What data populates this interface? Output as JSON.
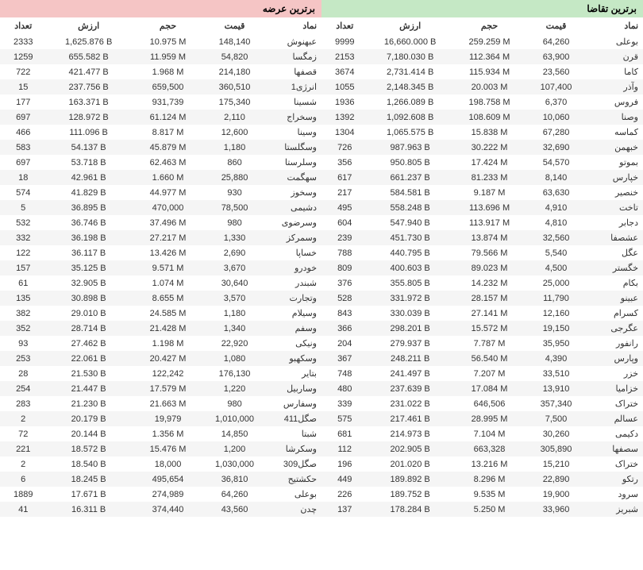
{
  "demand": {
    "title": "برترین تقاضا",
    "header_bg": "#c5e8c5",
    "columns": [
      "نماد",
      "قیمت",
      "حجم",
      "ارزش",
      "تعداد"
    ],
    "rows": [
      [
        "بوعلی",
        "64,260",
        "259.259 M",
        "16,660.000 B",
        "9999"
      ],
      [
        "قرن",
        "63,900",
        "112.364 M",
        "7,180.030 B",
        "2153"
      ],
      [
        "کاما",
        "23,560",
        "115.934 M",
        "2,731.414 B",
        "3674"
      ],
      [
        "وآذر",
        "107,400",
        "20.003 M",
        "2,148.345 B",
        "1055"
      ],
      [
        "فروس",
        "6,370",
        "198.758 M",
        "1,266.089 B",
        "1936"
      ],
      [
        "وصنا",
        "10,060",
        "108.609 M",
        "1,092.608 B",
        "1392"
      ],
      [
        "کماسه",
        "67,280",
        "15.838 M",
        "1,065.575 B",
        "1304"
      ],
      [
        "خبهمن",
        "32,690",
        "30.222 M",
        "987.963 B",
        "726"
      ],
      [
        "بموتو",
        "54,570",
        "17.424 M",
        "950.805 B",
        "356"
      ],
      [
        "خپارس",
        "8,140",
        "81.233 M",
        "661.237 B",
        "617"
      ],
      [
        "خنصیر",
        "63,630",
        "9.187 M",
        "584.581 B",
        "217"
      ],
      [
        "تاخت",
        "4,910",
        "113.696 M",
        "558.248 B",
        "495"
      ],
      [
        "دجابر",
        "4,810",
        "113.917 M",
        "547.940 B",
        "604"
      ],
      [
        "عشصفا",
        "32,560",
        "13.874 M",
        "451.730 B",
        "239"
      ],
      [
        "عگل",
        "5,540",
        "79.566 M",
        "440.795 B",
        "788"
      ],
      [
        "خگستر",
        "4,500",
        "89.023 M",
        "400.603 B",
        "809"
      ],
      [
        "بکام",
        "25,000",
        "14.232 M",
        "355.805 B",
        "376"
      ],
      [
        "عبینو",
        "11,790",
        "28.157 M",
        "331.972 B",
        "528"
      ],
      [
        "کسرام",
        "12,160",
        "27.141 M",
        "330.039 B",
        "843"
      ],
      [
        "عگرجی",
        "19,150",
        "15.572 M",
        "298.201 B",
        "366"
      ],
      [
        "رانفور",
        "35,950",
        "7.787 M",
        "279.937 B",
        "204"
      ],
      [
        "وپارس",
        "4,390",
        "56.540 M",
        "248.211 B",
        "367"
      ],
      [
        "خزر",
        "33,510",
        "7.207 M",
        "241.497 B",
        "748"
      ],
      [
        "خزامیا",
        "13,910",
        "17.084 M",
        "237.639 B",
        "480"
      ],
      [
        "ختراک",
        "357,340",
        "646,506",
        "231.022 B",
        "339"
      ],
      [
        "عسالم",
        "7,500",
        "28.995 M",
        "217.461 B",
        "575"
      ],
      [
        "دکیمی",
        "30,260",
        "7.104 M",
        "214.973 B",
        "681"
      ],
      [
        "سصفها",
        "305,890",
        "663,328",
        "202.905 B",
        "112"
      ],
      [
        "ختراک",
        "15,210",
        "13.216 M",
        "201.020 B",
        "196"
      ],
      [
        "رتکو",
        "22,890",
        "8.296 M",
        "189.892 B",
        "449"
      ],
      [
        "سرود",
        "19,900",
        "9.535 M",
        "189.752 B",
        "226"
      ],
      [
        "شبریز",
        "33,960",
        "5.250 M",
        "178.284 B",
        "137"
      ]
    ]
  },
  "supply": {
    "title": "برترین عرضه",
    "header_bg": "#f5c5c5",
    "columns": [
      "نماد",
      "قیمت",
      "حجم",
      "ارزش",
      "تعداد"
    ],
    "rows": [
      [
        "عبهنوش",
        "148,140",
        "10.975 M",
        "1,625.876 B",
        "2333"
      ],
      [
        "زمگسا",
        "54,820",
        "11.959 M",
        "655.582 B",
        "1259"
      ],
      [
        "قصفها",
        "214,180",
        "1.968 M",
        "421.477 B",
        "722"
      ],
      [
        "انرژی1",
        "360,510",
        "659,500",
        "237.756 B",
        "15"
      ],
      [
        "شسینا",
        "175,340",
        "931,739",
        "163.371 B",
        "177"
      ],
      [
        "وسخراج",
        "2,110",
        "61.124 M",
        "128.972 B",
        "697"
      ],
      [
        "وسینا",
        "12,600",
        "8.817 M",
        "111.096 B",
        "466"
      ],
      [
        "وسگلستا",
        "1,180",
        "45.879 M",
        "54.137 B",
        "583"
      ],
      [
        "وسلرستا",
        "860",
        "62.463 M",
        "53.718 B",
        "697"
      ],
      [
        "سهگمت",
        "25,880",
        "1.660 M",
        "42.961 B",
        "18"
      ],
      [
        "وسخوز",
        "930",
        "44.977 M",
        "41.829 B",
        "574"
      ],
      [
        "دشیمی",
        "78,500",
        "470,000",
        "36.895 B",
        "5"
      ],
      [
        "وسرضوی",
        "980",
        "37.496 M",
        "36.746 B",
        "532"
      ],
      [
        "وسمرکز",
        "1,330",
        "27.217 M",
        "36.198 B",
        "332"
      ],
      [
        "خساپا",
        "2,690",
        "13.426 M",
        "36.117 B",
        "122"
      ],
      [
        "خودرو",
        "3,670",
        "9.571 M",
        "35.125 B",
        "157"
      ],
      [
        "شبندر",
        "30,640",
        "1.074 M",
        "32.905 B",
        "61"
      ],
      [
        "وتجارت",
        "3,570",
        "8.655 M",
        "30.898 B",
        "135"
      ],
      [
        "وسیلام",
        "1,180",
        "24.585 M",
        "29.010 B",
        "382"
      ],
      [
        "وسفم",
        "1,340",
        "21.428 M",
        "28.714 B",
        "352"
      ],
      [
        "ونیکی",
        "22,920",
        "1.198 M",
        "27.462 B",
        "93"
      ],
      [
        "وسکهبو",
        "1,080",
        "20.427 M",
        "22.061 B",
        "253"
      ],
      [
        "بتایر",
        "176,130",
        "122,242",
        "21.530 B",
        "28"
      ],
      [
        "وساربیل",
        "1,220",
        "17.579 M",
        "21.447 B",
        "254"
      ],
      [
        "وسفارس",
        "980",
        "21.663 M",
        "21.230 B",
        "283"
      ],
      [
        "صگل411",
        "1,010,000",
        "19,979",
        "20.179 B",
        "2"
      ],
      [
        "شبتا",
        "14,850",
        "1.356 M",
        "20.144 B",
        "72"
      ],
      [
        "وسکرشا",
        "1,200",
        "15.476 M",
        "18.572 B",
        "221"
      ],
      [
        "صگل309",
        "1,030,000",
        "18,000",
        "18.540 B",
        "2"
      ],
      [
        "حکشتیح",
        "36,810",
        "495,654",
        "18.245 B",
        "6"
      ],
      [
        "بوعلی",
        "64,260",
        "274,989",
        "17.671 B",
        "1889"
      ],
      [
        "چدن",
        "43,560",
        "374,440",
        "16.311 B",
        "41"
      ]
    ]
  }
}
